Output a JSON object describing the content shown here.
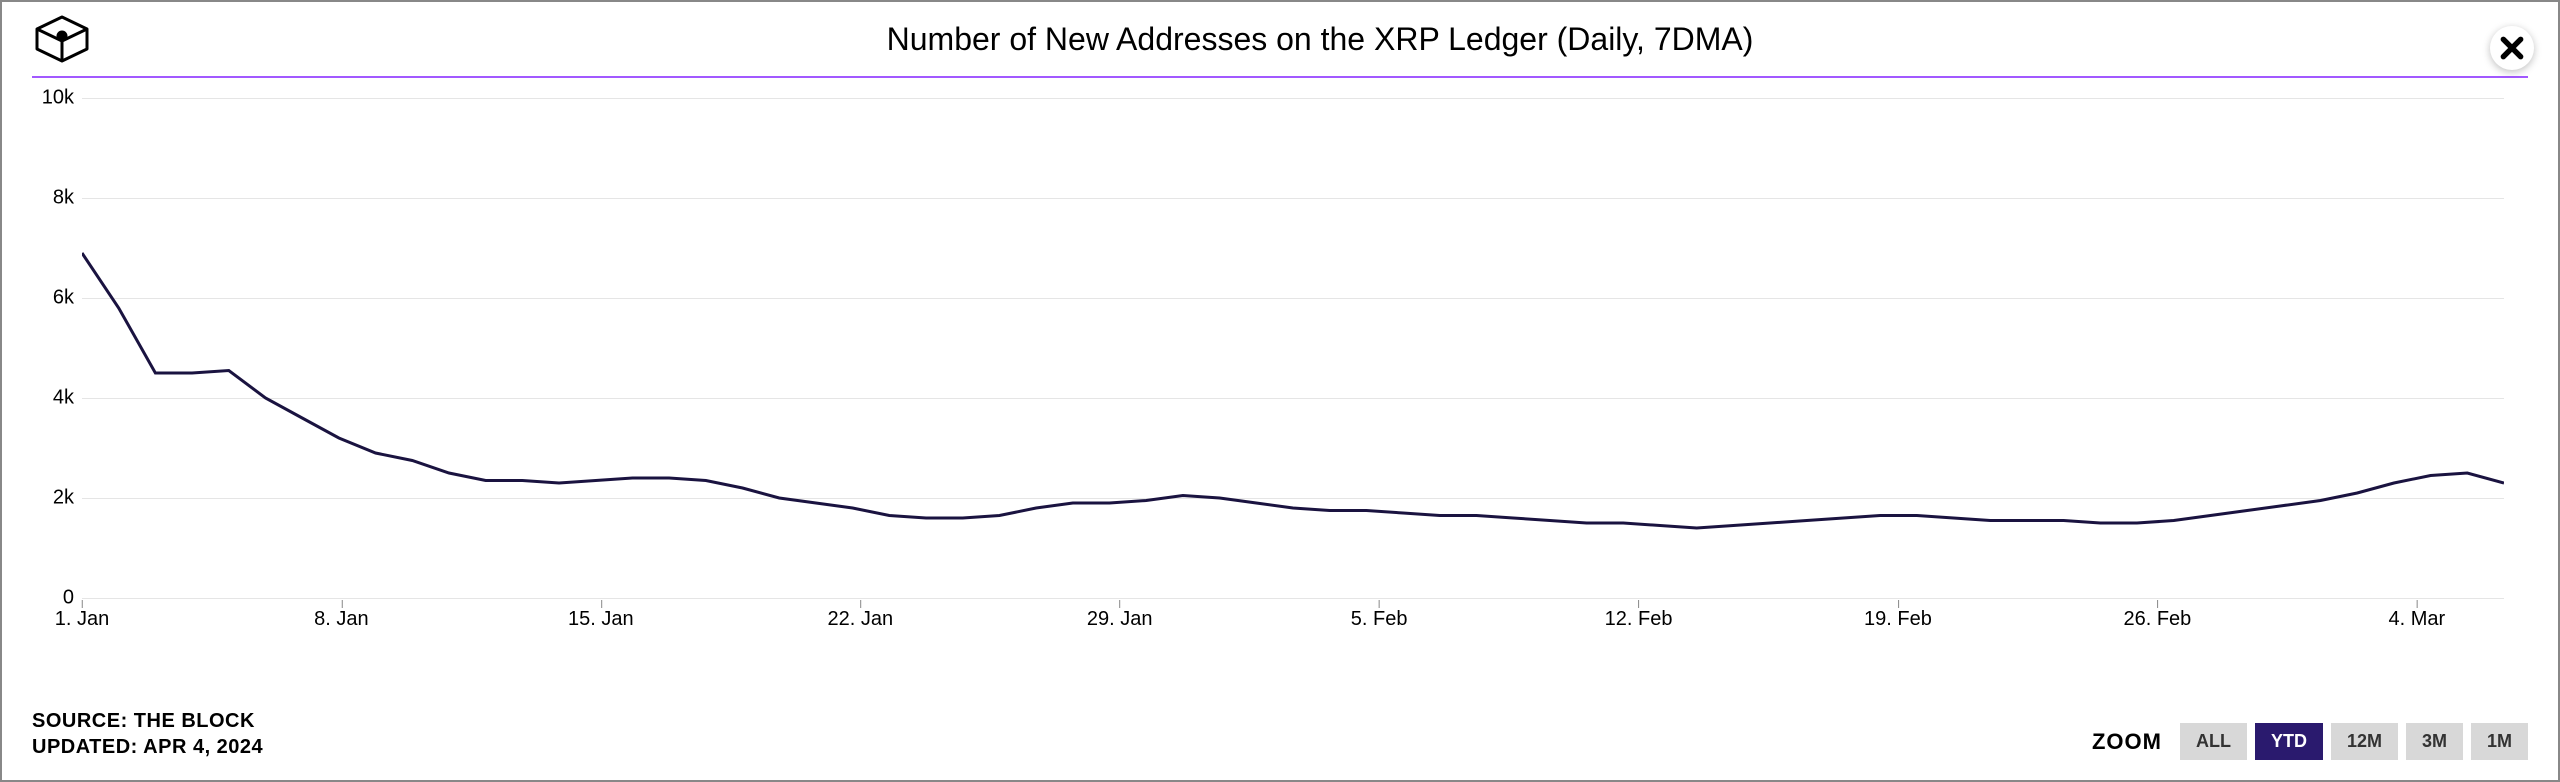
{
  "title": "Number of New Addresses on the XRP Ledger (Daily, 7DMA)",
  "divider_color": "#a259ff",
  "chart": {
    "type": "line",
    "line_color": "#1a1340",
    "line_width": 3,
    "background_color": "#ffffff",
    "grid_color": "#e5e5e5",
    "ylim": [
      0,
      10000
    ],
    "y_ticks": [
      {
        "value": 0,
        "label": "0"
      },
      {
        "value": 2000,
        "label": "2k"
      },
      {
        "value": 4000,
        "label": "4k"
      },
      {
        "value": 6000,
        "label": "6k"
      },
      {
        "value": 8000,
        "label": "8k"
      },
      {
        "value": 10000,
        "label": "10k"
      }
    ],
    "x_ticks": [
      {
        "index": 0,
        "label": "1. Jan"
      },
      {
        "index": 7,
        "label": "8. Jan"
      },
      {
        "index": 14,
        "label": "15. Jan"
      },
      {
        "index": 21,
        "label": "22. Jan"
      },
      {
        "index": 28,
        "label": "29. Jan"
      },
      {
        "index": 35,
        "label": "5. Feb"
      },
      {
        "index": 42,
        "label": "12. Feb"
      },
      {
        "index": 49,
        "label": "19. Feb"
      },
      {
        "index": 56,
        "label": "26. Feb"
      },
      {
        "index": 63,
        "label": "4. Mar"
      }
    ],
    "x_count": 67,
    "series": [
      6900,
      5800,
      4500,
      4500,
      4550,
      4000,
      3600,
      3200,
      2900,
      2750,
      2500,
      2350,
      2350,
      2300,
      2350,
      2400,
      2400,
      2350,
      2200,
      2000,
      1900,
      1800,
      1650,
      1600,
      1600,
      1650,
      1800,
      1900,
      1900,
      1950,
      2050,
      2000,
      1900,
      1800,
      1750,
      1750,
      1700,
      1650,
      1650,
      1600,
      1550,
      1500,
      1500,
      1450,
      1400,
      1450,
      1500,
      1550,
      1600,
      1650,
      1650,
      1600,
      1550,
      1550,
      1550,
      1500,
      1500,
      1550,
      1650,
      1750,
      1850,
      1950,
      2100,
      2300,
      2450,
      2500,
      2300
    ]
  },
  "source_line1": "SOURCE: THE BLOCK",
  "source_line2": "UPDATED: APR 4, 2024",
  "zoom": {
    "label": "ZOOM",
    "buttons": [
      {
        "label": "ALL",
        "active": false
      },
      {
        "label": "YTD",
        "active": true
      },
      {
        "label": "12M",
        "active": false
      },
      {
        "label": "3M",
        "active": false
      },
      {
        "label": "1M",
        "active": false
      }
    ]
  }
}
